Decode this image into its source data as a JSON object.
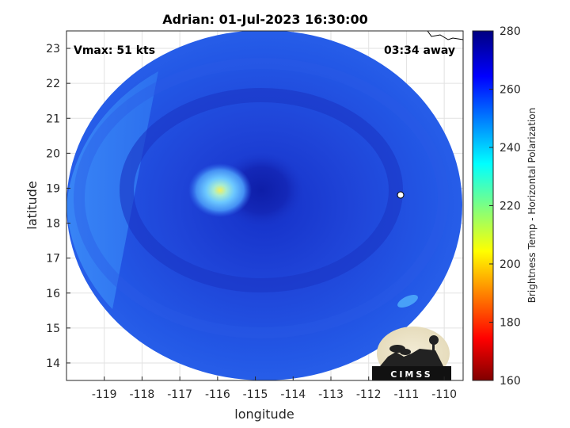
{
  "title": "Adrian: 01-Jul-2023 16:30:00",
  "annotations": {
    "vmax": "Vmax: 51 kts",
    "time_away": "03:34 away"
  },
  "axes": {
    "xlabel": "longitude",
    "ylabel": "latitude",
    "xlim": [
      -120,
      -109.5
    ],
    "ylim": [
      13.5,
      23.5
    ],
    "xticks": [
      -119,
      -118,
      -117,
      -116,
      -115,
      -114,
      -113,
      -112,
      -111,
      -110
    ],
    "yticks": [
      14,
      15,
      16,
      17,
      18,
      19,
      20,
      21,
      22,
      23
    ],
    "grid": true
  },
  "colorbar": {
    "label": "Brightness Temp - Horizontal Polarization",
    "ticks": [
      160,
      180,
      200,
      220,
      240,
      260,
      280
    ],
    "range": [
      160,
      280
    ],
    "colormap": "jet"
  },
  "logo": {
    "text": "CIMSS"
  },
  "colors": {
    "field_base": "#1f4fe0",
    "field_deep": "#1228b8",
    "warm_spot": "#7fd0ff",
    "bright_core": "#e6f060"
  }
}
